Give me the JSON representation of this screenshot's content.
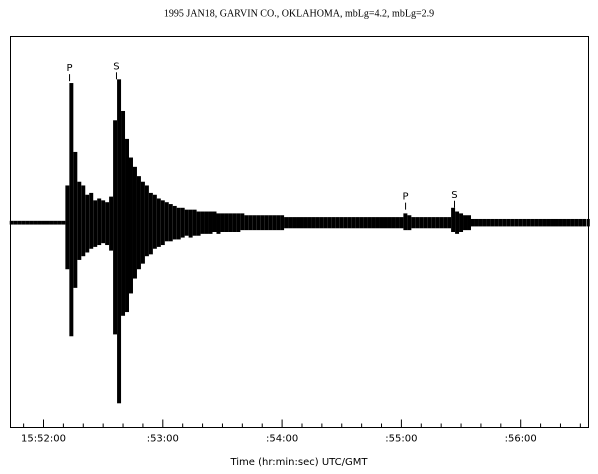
{
  "chart_data": {
    "type": "envelope",
    "title": "1995 JAN18, GARVIN CO., OKLAHOMA, mbLg=4.2, mbLg=2.9",
    "x_label": "Time (hr:min:sec)  UTC/GMT",
    "color": "#000000",
    "xlim": [
      -16.6,
      274.1
    ],
    "ylim": [
      -1.1,
      1
    ],
    "xticks": [
      {
        "value": 0,
        "label": "15:52:00"
      },
      {
        "value": 60,
        "label": ":53:00"
      },
      {
        "value": 120,
        "label": ":54:00"
      },
      {
        "value": 180,
        "label": ":55:00"
      },
      {
        "value": 240,
        "label": ":56:00"
      }
    ],
    "xminorticks": [
      -10,
      10,
      20,
      30,
      40,
      50,
      70,
      80,
      90,
      100,
      110,
      130,
      140,
      150,
      160,
      170,
      190,
      200,
      210,
      220,
      230,
      250,
      260,
      270
    ],
    "annotations": [
      {
        "label": "P",
        "x": 13.1,
        "y": 0.83
      },
      {
        "label": "S",
        "x": 36.7,
        "y": 0.84
      },
      {
        "label": "P",
        "x": 182.1,
        "y": 0.14
      },
      {
        "label": "S",
        "x": 206.7,
        "y": 0.15
      }
    ],
    "x": [
      -16,
      -14,
      -12,
      -10,
      -8,
      -6,
      -4,
      -2,
      0,
      2,
      4,
      6,
      8,
      10,
      12,
      14,
      16,
      18,
      20,
      22,
      24,
      26,
      28,
      30,
      32,
      34,
      36,
      38,
      40,
      42,
      44,
      46,
      48,
      50,
      52,
      54,
      56,
      58,
      60,
      62,
      64,
      66,
      68,
      70,
      72,
      74,
      76,
      78,
      80,
      82,
      84,
      86,
      88,
      90,
      92,
      94,
      96,
      98,
      100,
      102,
      104,
      106,
      108,
      110,
      112,
      114,
      116,
      118,
      120,
      122,
      124,
      126,
      128,
      130,
      132,
      134,
      136,
      138,
      140,
      142,
      144,
      146,
      148,
      150,
      152,
      154,
      156,
      158,
      160,
      162,
      164,
      166,
      168,
      170,
      172,
      174,
      176,
      178,
      180,
      182,
      184,
      186,
      188,
      190,
      192,
      194,
      196,
      198,
      200,
      202,
      204,
      206,
      208,
      210,
      212,
      214,
      216,
      218,
      220,
      222,
      224,
      226,
      228,
      230,
      232,
      234,
      236,
      238,
      240,
      242,
      244,
      246,
      248,
      250,
      252,
      254,
      256,
      258,
      260,
      262,
      264,
      266,
      268,
      270,
      272,
      274
    ],
    "upper": [
      0.01,
      0.01,
      0.01,
      0.01,
      0.01,
      0.01,
      0.01,
      0.01,
      0.01,
      0.01,
      0.01,
      0.01,
      0.01,
      0.01,
      0.2,
      0.75,
      0.38,
      0.22,
      0.2,
      0.15,
      0.16,
      0.12,
      0.13,
      0.12,
      0.11,
      0.14,
      0.55,
      0.77,
      0.6,
      0.45,
      0.35,
      0.3,
      0.25,
      0.22,
      0.2,
      0.16,
      0.15,
      0.13,
      0.12,
      0.11,
      0.1,
      0.09,
      0.08,
      0.08,
      0.07,
      0.07,
      0.07,
      0.06,
      0.06,
      0.06,
      0.06,
      0.06,
      0.05,
      0.05,
      0.05,
      0.05,
      0.05,
      0.05,
      0.05,
      0.04,
      0.04,
      0.04,
      0.04,
      0.04,
      0.04,
      0.04,
      0.04,
      0.04,
      0.04,
      0.03,
      0.03,
      0.03,
      0.03,
      0.03,
      0.03,
      0.03,
      0.03,
      0.03,
      0.03,
      0.03,
      0.03,
      0.03,
      0.03,
      0.03,
      0.03,
      0.03,
      0.03,
      0.03,
      0.03,
      0.03,
      0.03,
      0.03,
      0.03,
      0.03,
      0.03,
      0.03,
      0.03,
      0.03,
      0.03,
      0.05,
      0.04,
      0.03,
      0.03,
      0.03,
      0.03,
      0.03,
      0.03,
      0.03,
      0.03,
      0.03,
      0.03,
      0.08,
      0.06,
      0.05,
      0.04,
      0.04,
      0.02,
      0.02,
      0.02,
      0.02,
      0.02,
      0.02,
      0.02,
      0.02,
      0.02,
      0.02,
      0.02,
      0.02,
      0.02,
      0.02,
      0.02,
      0.02,
      0.02,
      0.02,
      0.02,
      0.02,
      0.02,
      0.02,
      0.02,
      0.02,
      0.02,
      0.02,
      0.02,
      0.02,
      0.02,
      0.02
    ],
    "lower": [
      -0.01,
      -0.01,
      -0.01,
      -0.01,
      -0.01,
      -0.01,
      -0.01,
      -0.01,
      -0.01,
      -0.01,
      -0.01,
      -0.01,
      -0.01,
      -0.01,
      -0.25,
      -0.61,
      -0.35,
      -0.2,
      -0.18,
      -0.16,
      -0.14,
      -0.13,
      -0.12,
      -0.11,
      -0.12,
      -0.15,
      -0.6,
      -0.97,
      -0.5,
      -0.48,
      -0.38,
      -0.3,
      -0.25,
      -0.22,
      -0.18,
      -0.17,
      -0.14,
      -0.13,
      -0.12,
      -0.1,
      -0.1,
      -0.09,
      -0.09,
      -0.08,
      -0.07,
      -0.08,
      -0.07,
      -0.07,
      -0.06,
      -0.06,
      -0.06,
      -0.05,
      -0.06,
      -0.05,
      -0.05,
      -0.05,
      -0.05,
      -0.05,
      -0.04,
      -0.04,
      -0.04,
      -0.04,
      -0.04,
      -0.04,
      -0.04,
      -0.04,
      -0.04,
      -0.04,
      -0.04,
      -0.03,
      -0.03,
      -0.03,
      -0.03,
      -0.03,
      -0.03,
      -0.03,
      -0.03,
      -0.03,
      -0.03,
      -0.03,
      -0.03,
      -0.03,
      -0.03,
      -0.03,
      -0.03,
      -0.03,
      -0.03,
      -0.03,
      -0.03,
      -0.03,
      -0.03,
      -0.03,
      -0.03,
      -0.03,
      -0.03,
      -0.03,
      -0.03,
      -0.03,
      -0.03,
      -0.04,
      -0.04,
      -0.03,
      -0.03,
      -0.03,
      -0.03,
      -0.03,
      -0.03,
      -0.03,
      -0.03,
      -0.03,
      -0.03,
      -0.05,
      -0.06,
      -0.05,
      -0.04,
      -0.04,
      -0.02,
      -0.02,
      -0.02,
      -0.02,
      -0.02,
      -0.02,
      -0.02,
      -0.02,
      -0.02,
      -0.02,
      -0.02,
      -0.02,
      -0.02,
      -0.02,
      -0.02,
      -0.02,
      -0.02,
      -0.02,
      -0.02,
      -0.02,
      -0.02,
      -0.02,
      -0.02,
      -0.02,
      -0.02,
      -0.02,
      -0.02,
      -0.02,
      -0.02,
      -0.02
    ]
  }
}
